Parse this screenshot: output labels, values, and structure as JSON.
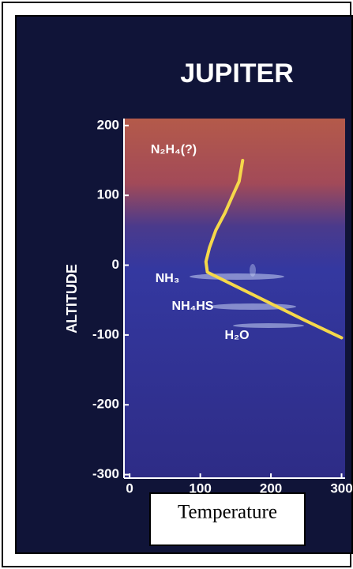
{
  "chart_data": {
    "type": "line",
    "title": "JUPITER",
    "x_label": "Temperature",
    "y_label": "ALTITUDE",
    "xlim": [
      -8,
      305
    ],
    "ylim": [
      -305,
      210
    ],
    "xticks": [
      0,
      100,
      200,
      300
    ],
    "yticks": [
      -300,
      -200,
      -100,
      0,
      100,
      200
    ],
    "annotations": [
      "N₂H₄(?)",
      "NH₃",
      "NH₄HS",
      "H₂O"
    ],
    "series": [
      {
        "color": "#f5d84a",
        "x": [
          160,
          155,
          146,
          135,
          122,
          113,
          108,
          110,
          150,
          200,
          250,
          300
        ],
        "values": [
          150,
          120,
          100,
          75,
          50,
          25,
          5,
          -10,
          -30,
          -55,
          -80,
          -104
        ]
      }
    ]
  }
}
